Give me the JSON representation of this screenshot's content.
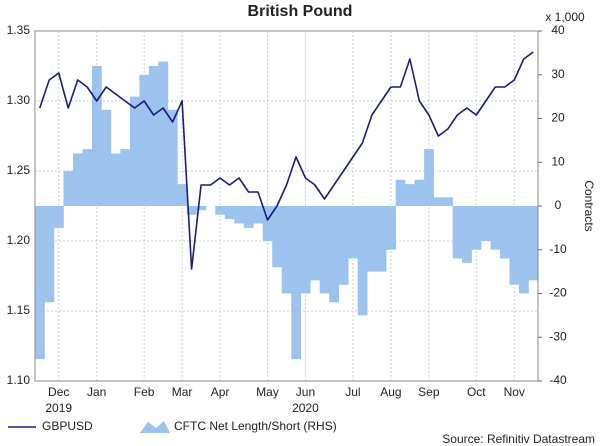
{
  "chart_data": {
    "type": "line-bar",
    "title": "British Pound",
    "y2_unit": "x 1,000",
    "y2label": "Contracts",
    "source": "Source: Refinitiv Datastream",
    "categories": [
      null,
      null,
      "Dec",
      null,
      null,
      null,
      "Jan",
      null,
      null,
      null,
      null,
      "Feb",
      null,
      null,
      null,
      "Mar",
      null,
      null,
      null,
      "Apr",
      null,
      null,
      null,
      null,
      "May",
      null,
      null,
      null,
      "Jun",
      null,
      null,
      null,
      null,
      "Jul",
      null,
      null,
      null,
      "Aug",
      null,
      null,
      null,
      "Sep",
      null,
      null,
      null,
      null,
      "Oct",
      null,
      null,
      null,
      "Nov",
      null,
      null
    ],
    "year_labels": [
      null,
      null,
      "2019",
      null,
      null,
      null,
      null,
      null,
      null,
      null,
      null,
      null,
      null,
      null,
      null,
      null,
      null,
      null,
      null,
      null,
      null,
      null,
      null,
      null,
      null,
      null,
      null,
      null,
      "2020",
      null,
      null,
      null,
      null,
      null,
      null,
      null,
      null,
      null,
      null,
      null,
      null,
      null,
      null,
      null,
      null,
      null,
      null,
      null,
      null,
      null,
      null,
      null,
      null
    ],
    "ylim": [
      1.1,
      1.35
    ],
    "yticks": [
      {
        "value": 1.1,
        "label": "1.10"
      },
      1.15,
      {
        "value": 1.2,
        "label": "1.20"
      },
      1.25,
      {
        "value": 1.3,
        "label": "1.30"
      },
      1.35
    ],
    "y2lim": [
      -40,
      40
    ],
    "y2ticks": [
      -40,
      -30,
      -20,
      -10,
      0,
      10,
      20,
      30,
      40
    ],
    "grid": true,
    "series": [
      {
        "name": "GBPUSD",
        "type": "line",
        "color": "#1c1c7a",
        "values": [
          1.295,
          1.315,
          1.32,
          1.295,
          1.315,
          1.31,
          1.3,
          1.31,
          1.305,
          1.3,
          1.295,
          1.3,
          1.29,
          1.295,
          1.285,
          1.3,
          1.18,
          1.24,
          1.24,
          1.245,
          1.24,
          1.245,
          1.235,
          1.235,
          1.215,
          1.225,
          1.24,
          1.26,
          1.245,
          1.24,
          1.23,
          1.24,
          1.25,
          1.26,
          1.27,
          1.29,
          1.3,
          1.31,
          1.31,
          1.33,
          1.3,
          1.29,
          1.275,
          1.28,
          1.29,
          1.295,
          1.29,
          1.3,
          1.31,
          1.31,
          1.315,
          1.33,
          1.335
        ]
      },
      {
        "name": "CFTC Net Length/Short (RHS)",
        "type": "bar",
        "axis": "y2",
        "color": "#9cc3ee",
        "values": [
          -35,
          -22,
          -5,
          8,
          12,
          13,
          32,
          22,
          12,
          13,
          25,
          30,
          32,
          33,
          22,
          5,
          -2,
          -1,
          0,
          -2,
          -3,
          -4,
          -5,
          -4,
          -8,
          -14,
          -20,
          -35,
          -20,
          -17,
          -20,
          -22,
          -18,
          -12,
          -25,
          -15,
          -15,
          -10,
          6,
          5,
          6,
          13,
          2,
          2,
          -12,
          -13,
          -10,
          -8,
          -10,
          -12,
          -18,
          -20,
          -17
        ]
      }
    ]
  }
}
